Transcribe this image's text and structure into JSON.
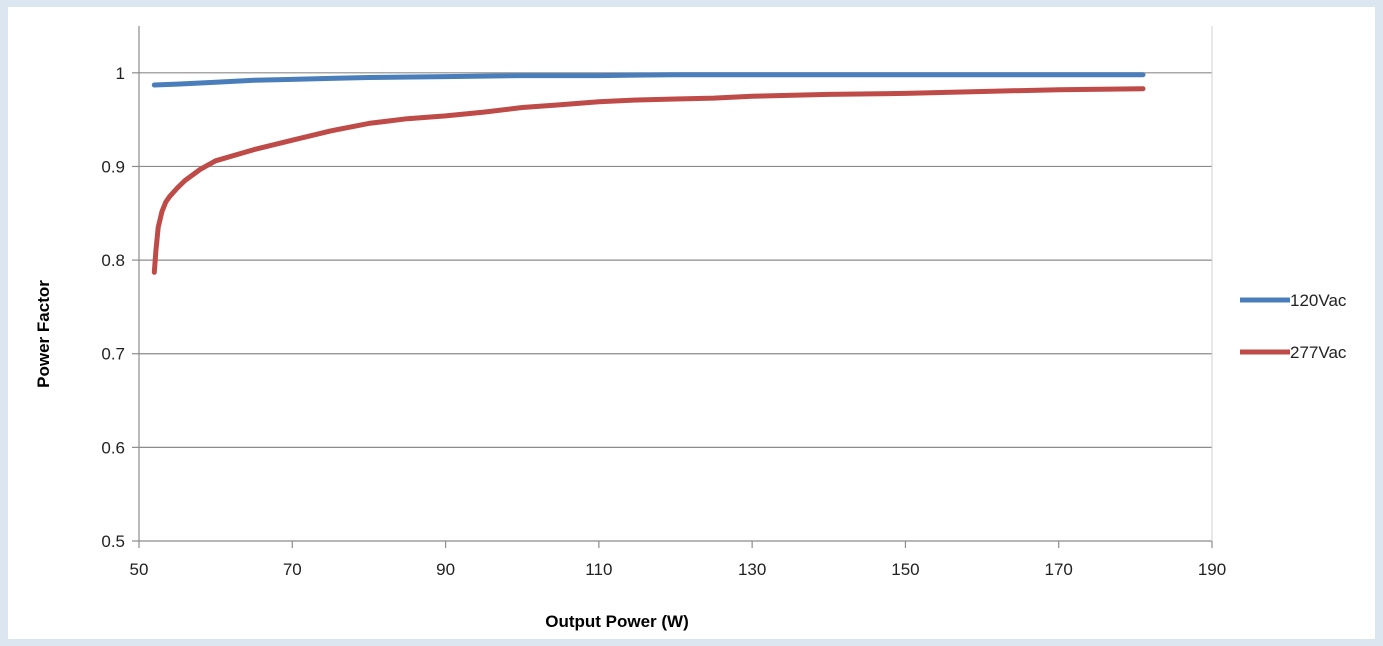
{
  "chart_data": {
    "type": "line",
    "title": "",
    "xlabel": "Output Power (W)",
    "ylabel": "Power Factor",
    "xlim": [
      50,
      190
    ],
    "ylim": [
      0.5,
      1.05
    ],
    "x_ticks": [
      50,
      70,
      90,
      110,
      130,
      150,
      170,
      190
    ],
    "x_tick_labels": [
      "50",
      "70",
      "90",
      "110",
      "130",
      "150",
      "170",
      "190"
    ],
    "y_ticks": [
      0.5,
      0.6,
      0.7,
      0.8,
      0.9,
      1.0
    ],
    "y_tick_labels": [
      "0.5",
      "0.6",
      "0.7",
      "0.8",
      "0.9",
      "1"
    ],
    "grid": "horizontal",
    "legend_position": "right",
    "series": [
      {
        "name": "120Vac",
        "color": "#4a7ebb",
        "x": [
          52,
          55,
          60,
          65,
          70,
          75,
          80,
          90,
          100,
          110,
          120,
          130,
          140,
          150,
          160,
          170,
          181
        ],
        "y": [
          0.987,
          0.988,
          0.99,
          0.992,
          0.993,
          0.994,
          0.995,
          0.996,
          0.997,
          0.997,
          0.998,
          0.998,
          0.998,
          0.998,
          0.998,
          0.998,
          0.998
        ]
      },
      {
        "name": "277Vac",
        "color": "#be4b48",
        "x": [
          52,
          52.2,
          52.5,
          53,
          53.5,
          54,
          55,
          56,
          58,
          60,
          65,
          70,
          75,
          80,
          85,
          90,
          95,
          100,
          105,
          110,
          115,
          120,
          125,
          130,
          140,
          150,
          160,
          170,
          181
        ],
        "y": [
          0.787,
          0.81,
          0.835,
          0.852,
          0.862,
          0.868,
          0.877,
          0.885,
          0.897,
          0.906,
          0.918,
          0.928,
          0.938,
          0.946,
          0.951,
          0.954,
          0.958,
          0.963,
          0.966,
          0.969,
          0.971,
          0.972,
          0.973,
          0.975,
          0.977,
          0.978,
          0.98,
          0.982,
          0.983
        ]
      }
    ]
  }
}
